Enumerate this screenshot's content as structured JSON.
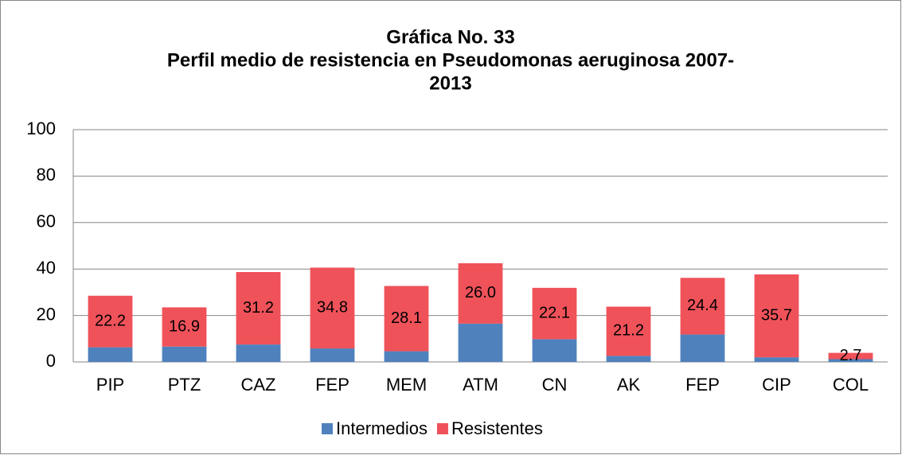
{
  "chart_data": {
    "type": "stacked_bar",
    "title": [
      "Gráfica No. 33",
      "Perfil medio de resistencia en Pseudomonas aeruginosa  2007-",
      "2013"
    ],
    "categories": [
      "PIP",
      "PTZ",
      "CAZ",
      "FEP",
      "MEM",
      "ATM",
      "CN",
      "AK",
      "FEP",
      "CIP",
      "COL"
    ],
    "series": [
      {
        "name": "Intermedios",
        "color": "#4f81bd",
        "values": [
          6.3,
          6.6,
          7.5,
          5.8,
          4.6,
          16.5,
          9.8,
          2.6,
          11.8,
          2.0,
          1.2
        ]
      },
      {
        "name": "Resistentes",
        "color": "#f0525a",
        "values": [
          22.2,
          16.9,
          31.2,
          34.8,
          28.1,
          26.0,
          22.1,
          21.2,
          24.4,
          35.7,
          2.7
        ],
        "value_labels": [
          "22.2",
          "16.9",
          "31.2",
          "34.8",
          "28.1",
          "26.0",
          "22.1",
          "21.2",
          "24.4",
          "35.7",
          "2.7"
        ]
      }
    ],
    "ylim": [
      0,
      100
    ],
    "yticks": [
      0,
      20,
      40,
      60,
      80,
      100
    ],
    "grid": true,
    "legend": "bottom"
  }
}
